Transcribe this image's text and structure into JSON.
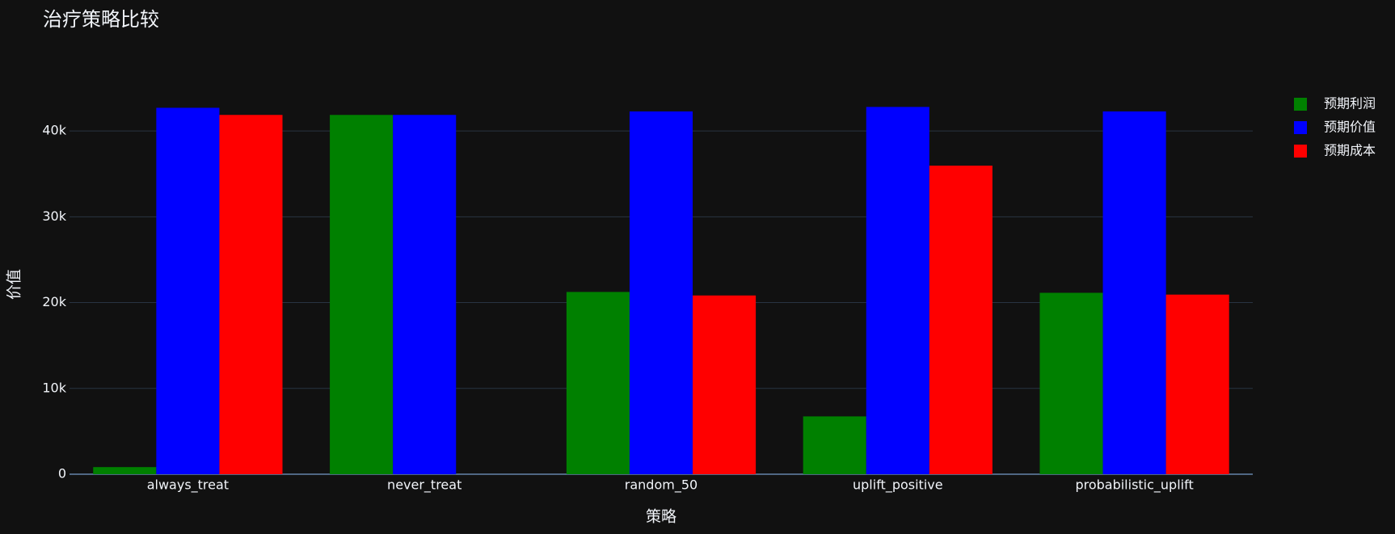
{
  "chart_data": {
    "type": "bar",
    "title": "治疗策略比较",
    "xlabel": "策略",
    "ylabel": "价值",
    "categories": [
      "always_treat",
      "never_treat",
      "random_50",
      "uplift_positive",
      "probabilistic_uplift"
    ],
    "series": [
      {
        "name": "预期利润",
        "color": "#008000",
        "values": [
          830,
          41870,
          21240,
          6740,
          21140
        ]
      },
      {
        "name": "预期价值",
        "color": "#0000ff",
        "values": [
          42700,
          41870,
          42280,
          42800,
          42280
        ]
      },
      {
        "name": "预期成本",
        "color": "#ff0000",
        "values": [
          41870,
          0,
          20830,
          35960,
          20930
        ]
      }
    ],
    "ylim": [
      0,
      45000
    ],
    "yticks": [
      0,
      {
        "value": 10000,
        "label": "10k"
      },
      {
        "value": 20000,
        "label": "20k"
      },
      {
        "value": 30000,
        "label": "30k"
      },
      {
        "value": 40000,
        "label": "40k"
      }
    ],
    "grid": true,
    "legend": "right"
  }
}
